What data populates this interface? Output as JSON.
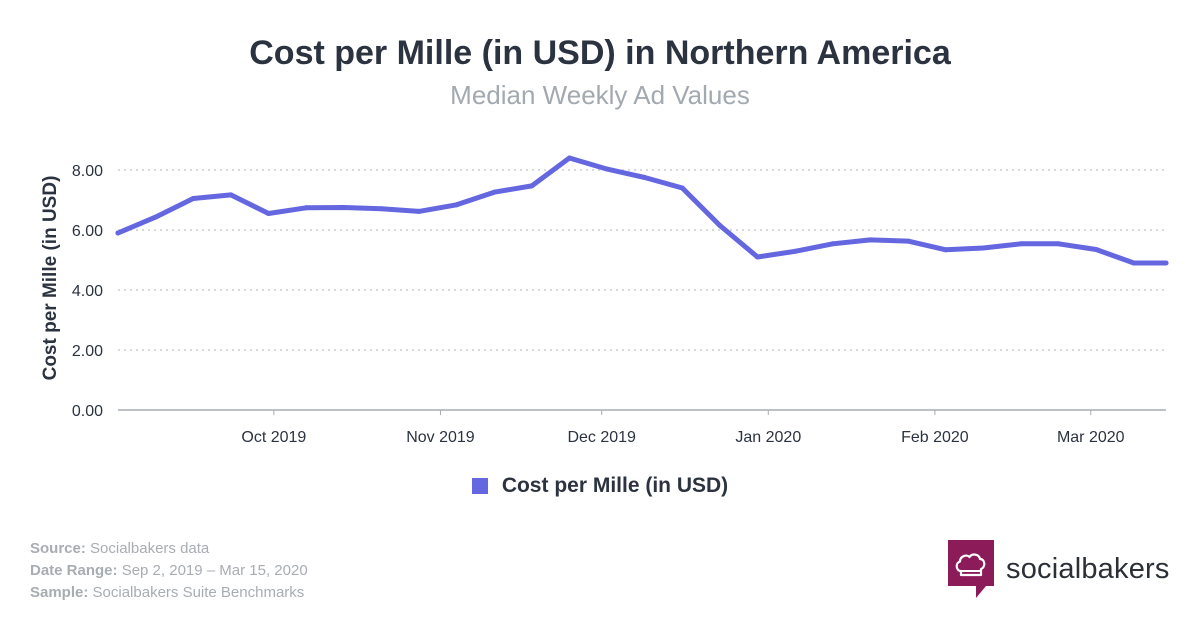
{
  "title": "Cost per Mille (in USD) in Northern America",
  "subtitle": "Median Weekly Ad Values",
  "legend_label": "Cost per Mille (in USD)",
  "colors": {
    "series": "#6467e0",
    "logo": "#8b1c59",
    "grid": "#c9cdd2",
    "axis": "#a7acb2"
  },
  "footer": {
    "source_label": "Source:",
    "source_value": "Socialbakers data",
    "range_label": "Date Range:",
    "range_value": "Sep 2, 2019 – Mar 15, 2020",
    "sample_label": "Sample:",
    "sample_value": "Socialbakers Suite Benchmarks"
  },
  "logo": {
    "wordmark": "socialbakers",
    "icon": "chef-hat-icon"
  },
  "chart_data": {
    "type": "line",
    "title": "Cost per Mille (in USD) in Northern America",
    "subtitle": "Median Weekly Ad Values",
    "xlabel": "",
    "ylabel": "Cost per Mille (in USD)",
    "ylim": [
      0,
      8
    ],
    "yticks": [
      "0.00",
      "2.00",
      "4.00",
      "6.00",
      "8.00"
    ],
    "xticks": [
      "Oct 2019",
      "Nov 2019",
      "Dec 2019",
      "Jan 2020",
      "Feb 2020",
      "Mar 2020"
    ],
    "grid": true,
    "legend": "bottom-center",
    "series": [
      {
        "name": "Cost per Mille (in USD)",
        "x": [
          "2019-09-02",
          "2019-09-09",
          "2019-09-16",
          "2019-09-23",
          "2019-09-30",
          "2019-10-07",
          "2019-10-14",
          "2019-10-21",
          "2019-10-28",
          "2019-11-04",
          "2019-11-11",
          "2019-11-18",
          "2019-11-25",
          "2019-12-02",
          "2019-12-09",
          "2019-12-16",
          "2019-12-23",
          "2019-12-30",
          "2020-01-06",
          "2020-01-13",
          "2020-01-20",
          "2020-01-27",
          "2020-02-03",
          "2020-02-10",
          "2020-02-17",
          "2020-02-24",
          "2020-03-02",
          "2020-03-09",
          "2020-03-15"
        ],
        "values": [
          5.9,
          6.43,
          7.05,
          7.17,
          6.55,
          6.74,
          6.75,
          6.71,
          6.62,
          6.84,
          7.26,
          7.47,
          8.4,
          8.03,
          7.75,
          7.4,
          6.15,
          5.1,
          5.29,
          5.54,
          5.67,
          5.63,
          5.34,
          5.4,
          5.54,
          5.54,
          5.35,
          4.9,
          4.9
        ]
      }
    ]
  }
}
